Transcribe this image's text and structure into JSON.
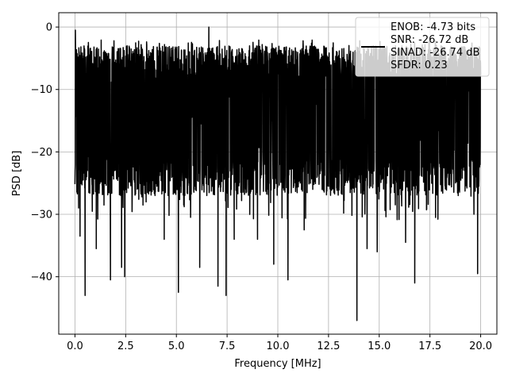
{
  "chart_data": {
    "type": "line",
    "title": "",
    "xlabel": "Frequency [MHz]",
    "ylabel": "PSD [dB]",
    "xlim": [
      -0.8,
      20.8
    ],
    "ylim": [
      -49.2,
      2.3
    ],
    "x_ticks": [
      0.0,
      2.5,
      5.0,
      7.5,
      10.0,
      12.5,
      15.0,
      17.5,
      20.0
    ],
    "x_tick_labels": [
      "0.0",
      "2.5",
      "5.0",
      "7.5",
      "10.0",
      "12.5",
      "15.0",
      "17.5",
      "20.0"
    ],
    "y_ticks": [
      0,
      -10,
      -20,
      -30,
      -40
    ],
    "y_tick_labels": [
      "0",
      "−10",
      "−20",
      "−30",
      "−40"
    ],
    "grid": true,
    "legend_placement": "top-right",
    "legend_lines": [
      "ENOB: -4.73 bits",
      "SNR: -26.72 dB",
      "SINAD: -26.74 dB",
      "SFDR: 0.23"
    ],
    "series": [
      {
        "color": "#000000",
        "x_start": 0.0,
        "x_end": 20.0,
        "band_top": -5,
        "band_bottom": -25,
        "spikes": [
          {
            "x": 0.02,
            "y": -0.5
          },
          {
            "x": 0.1,
            "y": -5
          },
          {
            "x": 0.18,
            "y": -29
          },
          {
            "x": 0.25,
            "y": -33.5
          },
          {
            "x": 0.5,
            "y": -43
          },
          {
            "x": 1.05,
            "y": -35.5
          },
          {
            "x": 1.75,
            "y": -40.5
          },
          {
            "x": 2.3,
            "y": -38.5
          },
          {
            "x": 2.45,
            "y": -40
          },
          {
            "x": 4.4,
            "y": -34
          },
          {
            "x": 5.1,
            "y": -42.5
          },
          {
            "x": 6.15,
            "y": -38.5
          },
          {
            "x": 6.6,
            "y": 0
          },
          {
            "x": 7.05,
            "y": -41.5
          },
          {
            "x": 7.45,
            "y": -43
          },
          {
            "x": 7.85,
            "y": -34
          },
          {
            "x": 9.0,
            "y": -34
          },
          {
            "x": 9.8,
            "y": -38
          },
          {
            "x": 10.5,
            "y": -40.5
          },
          {
            "x": 11.3,
            "y": -32.5
          },
          {
            "x": 13.9,
            "y": -47
          },
          {
            "x": 14.4,
            "y": -35.5
          },
          {
            "x": 14.9,
            "y": -36
          },
          {
            "x": 16.3,
            "y": -34.5
          },
          {
            "x": 16.75,
            "y": -41
          },
          {
            "x": 19.85,
            "y": -39.5
          }
        ]
      }
    ]
  }
}
